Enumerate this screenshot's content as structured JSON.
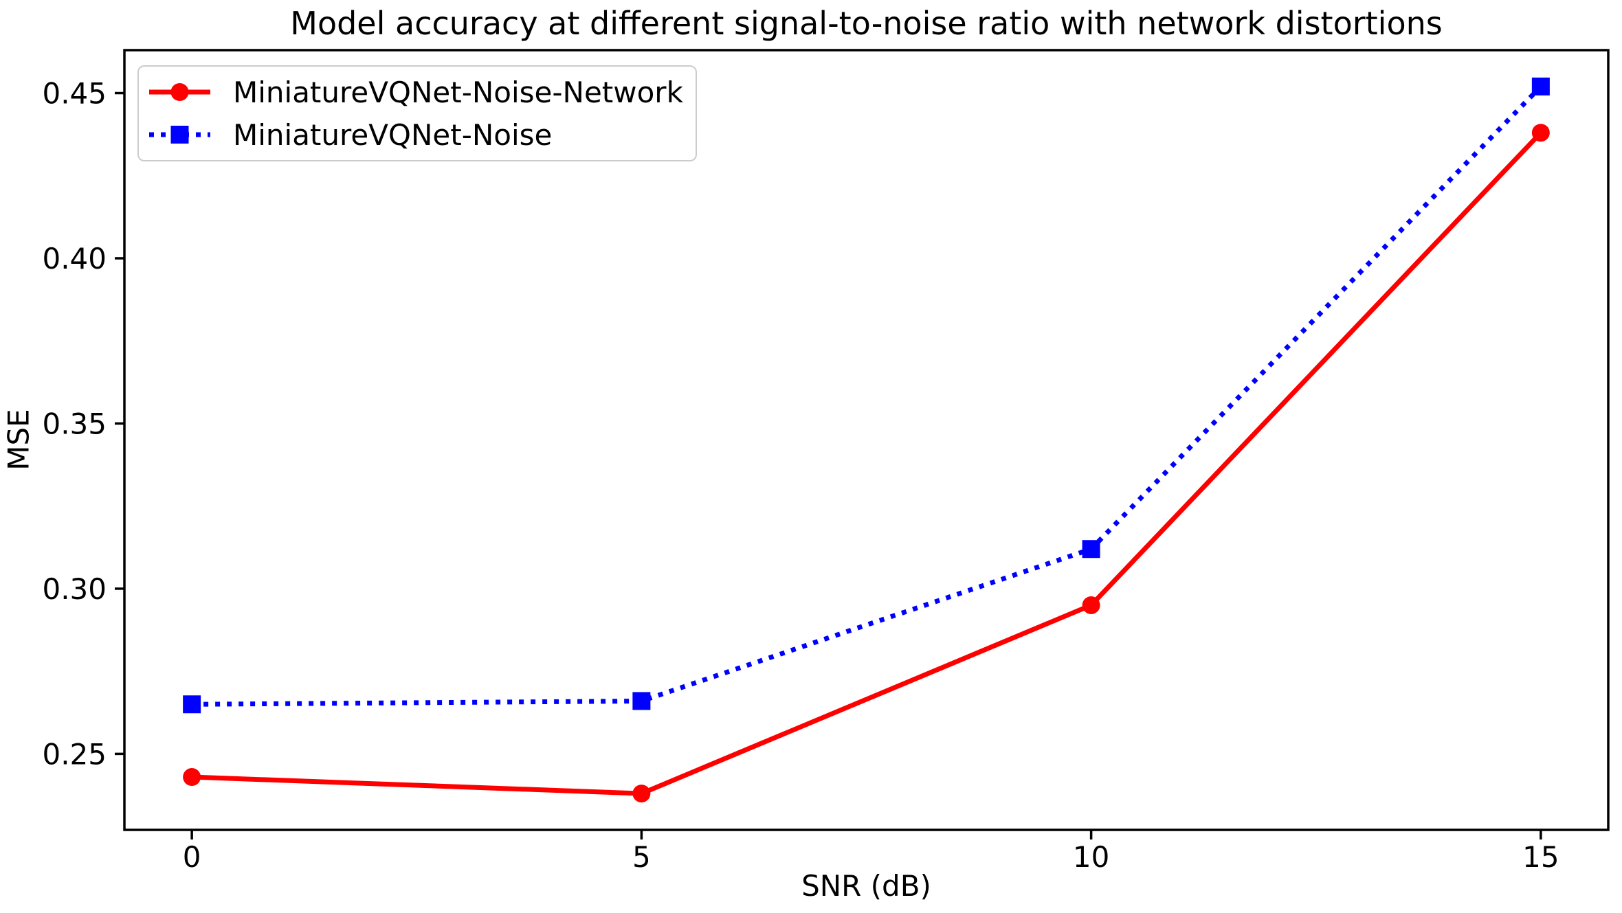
{
  "figure": {
    "background": "#ffffff",
    "text_color": "#000000"
  },
  "chart_data": {
    "type": "line",
    "title": "Model accuracy at different signal-to-noise ratio with network distortions",
    "xlabel": "SNR (dB)",
    "ylabel": "MSE",
    "x": [
      0,
      5,
      10,
      15
    ],
    "x_ticks": [
      0,
      5,
      10,
      15
    ],
    "x_tick_labels": [
      "0",
      "5",
      "10",
      "15"
    ],
    "y_ticks": [
      0.25,
      0.3,
      0.35,
      0.4,
      0.45
    ],
    "y_tick_labels": [
      "0.25",
      "0.30",
      "0.35",
      "0.40",
      "0.45"
    ],
    "xlim": [
      -0.75,
      15.75
    ],
    "ylim": [
      0.227,
      0.463
    ],
    "grid": false,
    "legend_position": "upper-left",
    "axis_color": "#000000",
    "text_color": "#000000",
    "series": [
      {
        "name": "MiniatureVQNet-Noise-Network",
        "color": "#ff0000",
        "line_style": "solid",
        "marker": "circle",
        "values": [
          0.243,
          0.238,
          0.295,
          0.438
        ]
      },
      {
        "name": "MiniatureVQNet-Noise",
        "color": "#0000ff",
        "line_style": "dotted",
        "marker": "square",
        "values": [
          0.265,
          0.266,
          0.312,
          0.452
        ]
      }
    ]
  }
}
